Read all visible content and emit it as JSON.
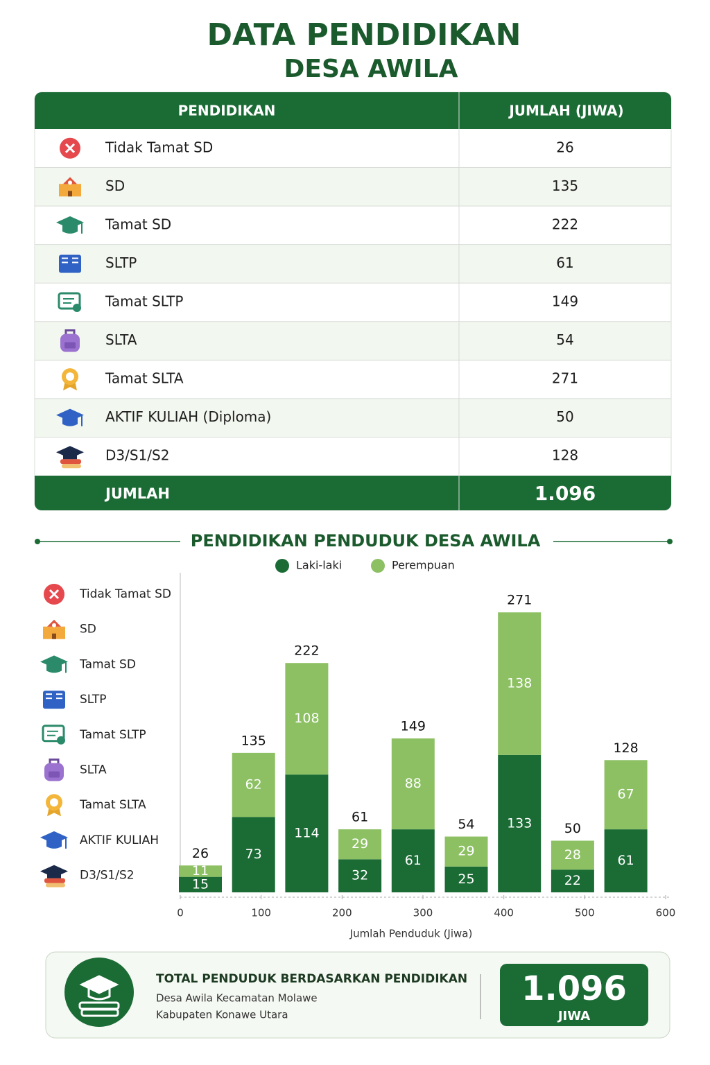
{
  "header": {
    "title": "DATA PENDIDIKAN",
    "subtitle": "DESA AWILA"
  },
  "table": {
    "columns": [
      "PENDIDIKAN",
      "JUMLAH (JIWA)"
    ],
    "rows": [
      {
        "label": "Tidak Tamat SD",
        "value": 26
      },
      {
        "label": "SD",
        "value": 135
      },
      {
        "label": "Tamat SD",
        "value": 222
      },
      {
        "label": "SLTP",
        "value": 61
      },
      {
        "label": "Tamat SLTP",
        "value": 149
      },
      {
        "label": "SLTA",
        "value": 54
      },
      {
        "label": "Tamat SLTA",
        "value": 271
      },
      {
        "label": "AKTIF KULIAH (Diploma)",
        "value": 50
      },
      {
        "label": "D3/S1/S2",
        "value": 128
      }
    ],
    "total": {
      "label": "JUMLAH",
      "value": "1.096"
    }
  },
  "chart_data": {
    "type": "stacked-bar",
    "title": "PENDIDIKAN PENDUDUK DESA AWILA",
    "categories": [
      "Tidak Tamat SD",
      "SD",
      "Tamat SD",
      "SLTP",
      "Tamat SLTP",
      "SLTA",
      "Tamat SLTA",
      "AKTIF KULIAH",
      "D3/S1/S2"
    ],
    "series": [
      {
        "name": "Laki-laki",
        "color": "#1b6b35",
        "values": [
          15,
          73,
          114,
          32,
          61,
          25,
          133,
          22,
          61
        ]
      },
      {
        "name": "Perempuan",
        "color": "#8cc063",
        "values": [
          11,
          62,
          108,
          29,
          88,
          29,
          138,
          28,
          67
        ]
      }
    ],
    "totals": [
      26,
      135,
      222,
      61,
      149,
      54,
      271,
      50,
      128
    ],
    "ylim": [
      0,
      300
    ],
    "xlim": [
      0,
      600
    ],
    "xticks": [
      0,
      100,
      200,
      300,
      400,
      500,
      600
    ],
    "xlabel": "Jumlah Penduduk (Jiwa)"
  },
  "summary": {
    "title": "TOTAL PENDUDUK BERDASARKAN PENDIDIKAN",
    "lines": [
      "Desa Awila Kecamatan Molawe",
      "Kabupaten Konawe Utara"
    ],
    "value": "1.096",
    "unit": "JIWA"
  }
}
